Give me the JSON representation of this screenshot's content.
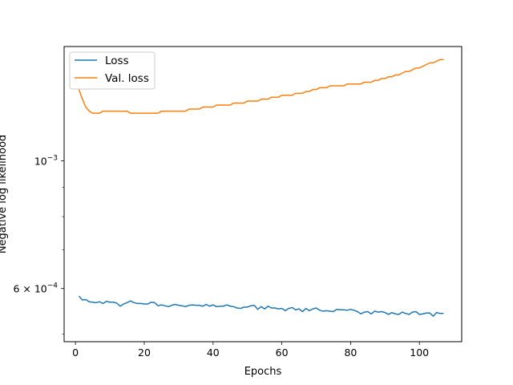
{
  "chart_data": {
    "type": "line",
    "xlabel": "Epochs",
    "ylabel": "Negative log likelihood",
    "xlim": [
      -3.3,
      112.3
    ],
    "ylim_log": [
      0.000485,
      0.00158
    ],
    "yscale": "log",
    "x_ticks": [
      0,
      20,
      40,
      60,
      80,
      100
    ],
    "y_ticks": [
      {
        "value": 0.001,
        "base": "10",
        "exp": "−3",
        "mantissa": ""
      },
      {
        "value": 0.0006,
        "base": "10",
        "exp": "−4",
        "mantissa": "6 × "
      }
    ],
    "y_minor_ticks": [
      0.0005,
      0.0007,
      0.0008,
      0.0009
    ],
    "legend_position": "upper-left",
    "series": [
      {
        "name": "Loss",
        "color": "#1f77b4",
        "x": [
          1,
          2,
          3,
          4,
          5,
          6,
          7,
          8,
          9,
          10,
          11,
          12,
          13,
          14,
          15,
          16,
          17,
          18,
          19,
          20,
          21,
          22,
          23,
          24,
          25,
          26,
          27,
          28,
          29,
          30,
          31,
          32,
          33,
          34,
          35,
          36,
          37,
          38,
          39,
          40,
          41,
          42,
          43,
          44,
          45,
          46,
          47,
          48,
          49,
          50,
          51,
          52,
          53,
          54,
          55,
          56,
          57,
          58,
          59,
          60,
          61,
          62,
          63,
          64,
          65,
          66,
          67,
          68,
          69,
          70,
          71,
          72,
          73,
          74,
          75,
          76,
          77,
          78,
          79,
          80,
          81,
          82,
          83,
          84,
          85,
          86,
          87,
          88,
          89,
          90,
          91,
          92,
          93,
          94,
          95,
          96,
          97,
          98,
          99,
          100,
          101,
          102,
          103,
          104,
          105,
          106,
          107
        ],
        "values": [
          0.000582,
          0.000573,
          0.000574,
          0.000569,
          0.000568,
          0.000567,
          0.000569,
          0.000565,
          0.00057,
          0.000568,
          0.000568,
          0.000566,
          0.000559,
          0.000564,
          0.000567,
          0.000571,
          0.000567,
          0.000565,
          0.000565,
          0.000564,
          0.000564,
          0.000568,
          0.000567,
          0.00056,
          0.000562,
          0.00056,
          0.000558,
          0.000561,
          0.000563,
          0.000561,
          0.00056,
          0.000558,
          0.000561,
          0.000562,
          0.000561,
          0.000561,
          0.000559,
          0.000563,
          0.000559,
          0.000562,
          0.000558,
          0.000559,
          0.000559,
          0.000562,
          0.000559,
          0.000558,
          0.000555,
          0.000554,
          0.000557,
          0.000557,
          0.00056,
          0.000561,
          0.000552,
          0.000558,
          0.000553,
          0.000559,
          0.000555,
          0.000555,
          0.000553,
          0.000554,
          0.000549,
          0.000554,
          0.000556,
          0.000551,
          0.000553,
          0.000547,
          0.000554,
          0.000549,
          0.000553,
          0.000555,
          0.00055,
          0.000548,
          0.000549,
          0.000548,
          0.000547,
          0.000552,
          0.000551,
          0.000551,
          0.00055,
          0.000552,
          0.00055,
          0.000547,
          0.000542,
          0.000546,
          0.000547,
          0.000542,
          0.000548,
          0.000546,
          0.000547,
          0.000545,
          0.000541,
          0.000545,
          0.000542,
          0.000541,
          0.000546,
          0.000543,
          0.000541,
          0.000546,
          0.000547,
          0.000541,
          0.000542,
          0.000544,
          0.000544,
          0.000537,
          0.000545,
          0.000543,
          0.000543
        ]
      },
      {
        "name": "Val. loss",
        "color": "#ff7f0e",
        "x": [
          1,
          2,
          3,
          4,
          5,
          6,
          7,
          8,
          9,
          10,
          11,
          12,
          13,
          14,
          15,
          16,
          17,
          18,
          19,
          20,
          21,
          22,
          23,
          24,
          25,
          26,
          27,
          28,
          29,
          30,
          31,
          32,
          33,
          34,
          35,
          36,
          37,
          38,
          39,
          40,
          41,
          42,
          43,
          44,
          45,
          46,
          47,
          48,
          49,
          50,
          51,
          52,
          53,
          54,
          55,
          56,
          57,
          58,
          59,
          60,
          61,
          62,
          63,
          64,
          65,
          66,
          67,
          68,
          69,
          70,
          71,
          72,
          73,
          74,
          75,
          76,
          77,
          78,
          79,
          80,
          81,
          82,
          83,
          84,
          85,
          86,
          87,
          88,
          89,
          90,
          91,
          92,
          93,
          94,
          95,
          96,
          97,
          98,
          99,
          100,
          101,
          102,
          103,
          104,
          105,
          106,
          107
        ],
        "values": [
          0.00133,
          0.00128,
          0.00124,
          0.00122,
          0.00121,
          0.00121,
          0.00121,
          0.00122,
          0.00122,
          0.00122,
          0.00122,
          0.00122,
          0.00122,
          0.00122,
          0.00122,
          0.00121,
          0.00121,
          0.00121,
          0.00121,
          0.00121,
          0.00121,
          0.00121,
          0.00121,
          0.00121,
          0.00122,
          0.00122,
          0.00122,
          0.00122,
          0.00122,
          0.00122,
          0.00122,
          0.00122,
          0.00123,
          0.00123,
          0.00123,
          0.00123,
          0.00124,
          0.00124,
          0.00124,
          0.00124,
          0.00125,
          0.00125,
          0.00125,
          0.00125,
          0.00125,
          0.00126,
          0.00126,
          0.00126,
          0.00126,
          0.00127,
          0.00127,
          0.00127,
          0.00127,
          0.00128,
          0.00128,
          0.00128,
          0.00129,
          0.00129,
          0.00129,
          0.0013,
          0.0013,
          0.0013,
          0.0013,
          0.00131,
          0.00131,
          0.00131,
          0.00132,
          0.00132,
          0.00133,
          0.00133,
          0.00134,
          0.00134,
          0.00134,
          0.00135,
          0.00135,
          0.00135,
          0.00135,
          0.00135,
          0.00136,
          0.00136,
          0.00136,
          0.00136,
          0.00136,
          0.00137,
          0.00137,
          0.00137,
          0.00138,
          0.00138,
          0.00139,
          0.00139,
          0.0014,
          0.0014,
          0.00141,
          0.00141,
          0.00142,
          0.00143,
          0.00143,
          0.00144,
          0.00145,
          0.00145,
          0.00146,
          0.00147,
          0.00148,
          0.00148,
          0.00149,
          0.0015,
          0.0015
        ]
      }
    ]
  }
}
